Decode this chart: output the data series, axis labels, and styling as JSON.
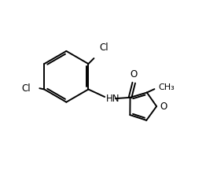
{
  "bg_color": "#ffffff",
  "line_color": "#000000",
  "text_color": "#000000",
  "bond_lw": 1.4,
  "font_size": 8.5,
  "figsize": [
    2.62,
    2.49
  ],
  "dpi": 100,
  "xlim": [
    0,
    10
  ],
  "ylim": [
    0,
    9.5
  ]
}
